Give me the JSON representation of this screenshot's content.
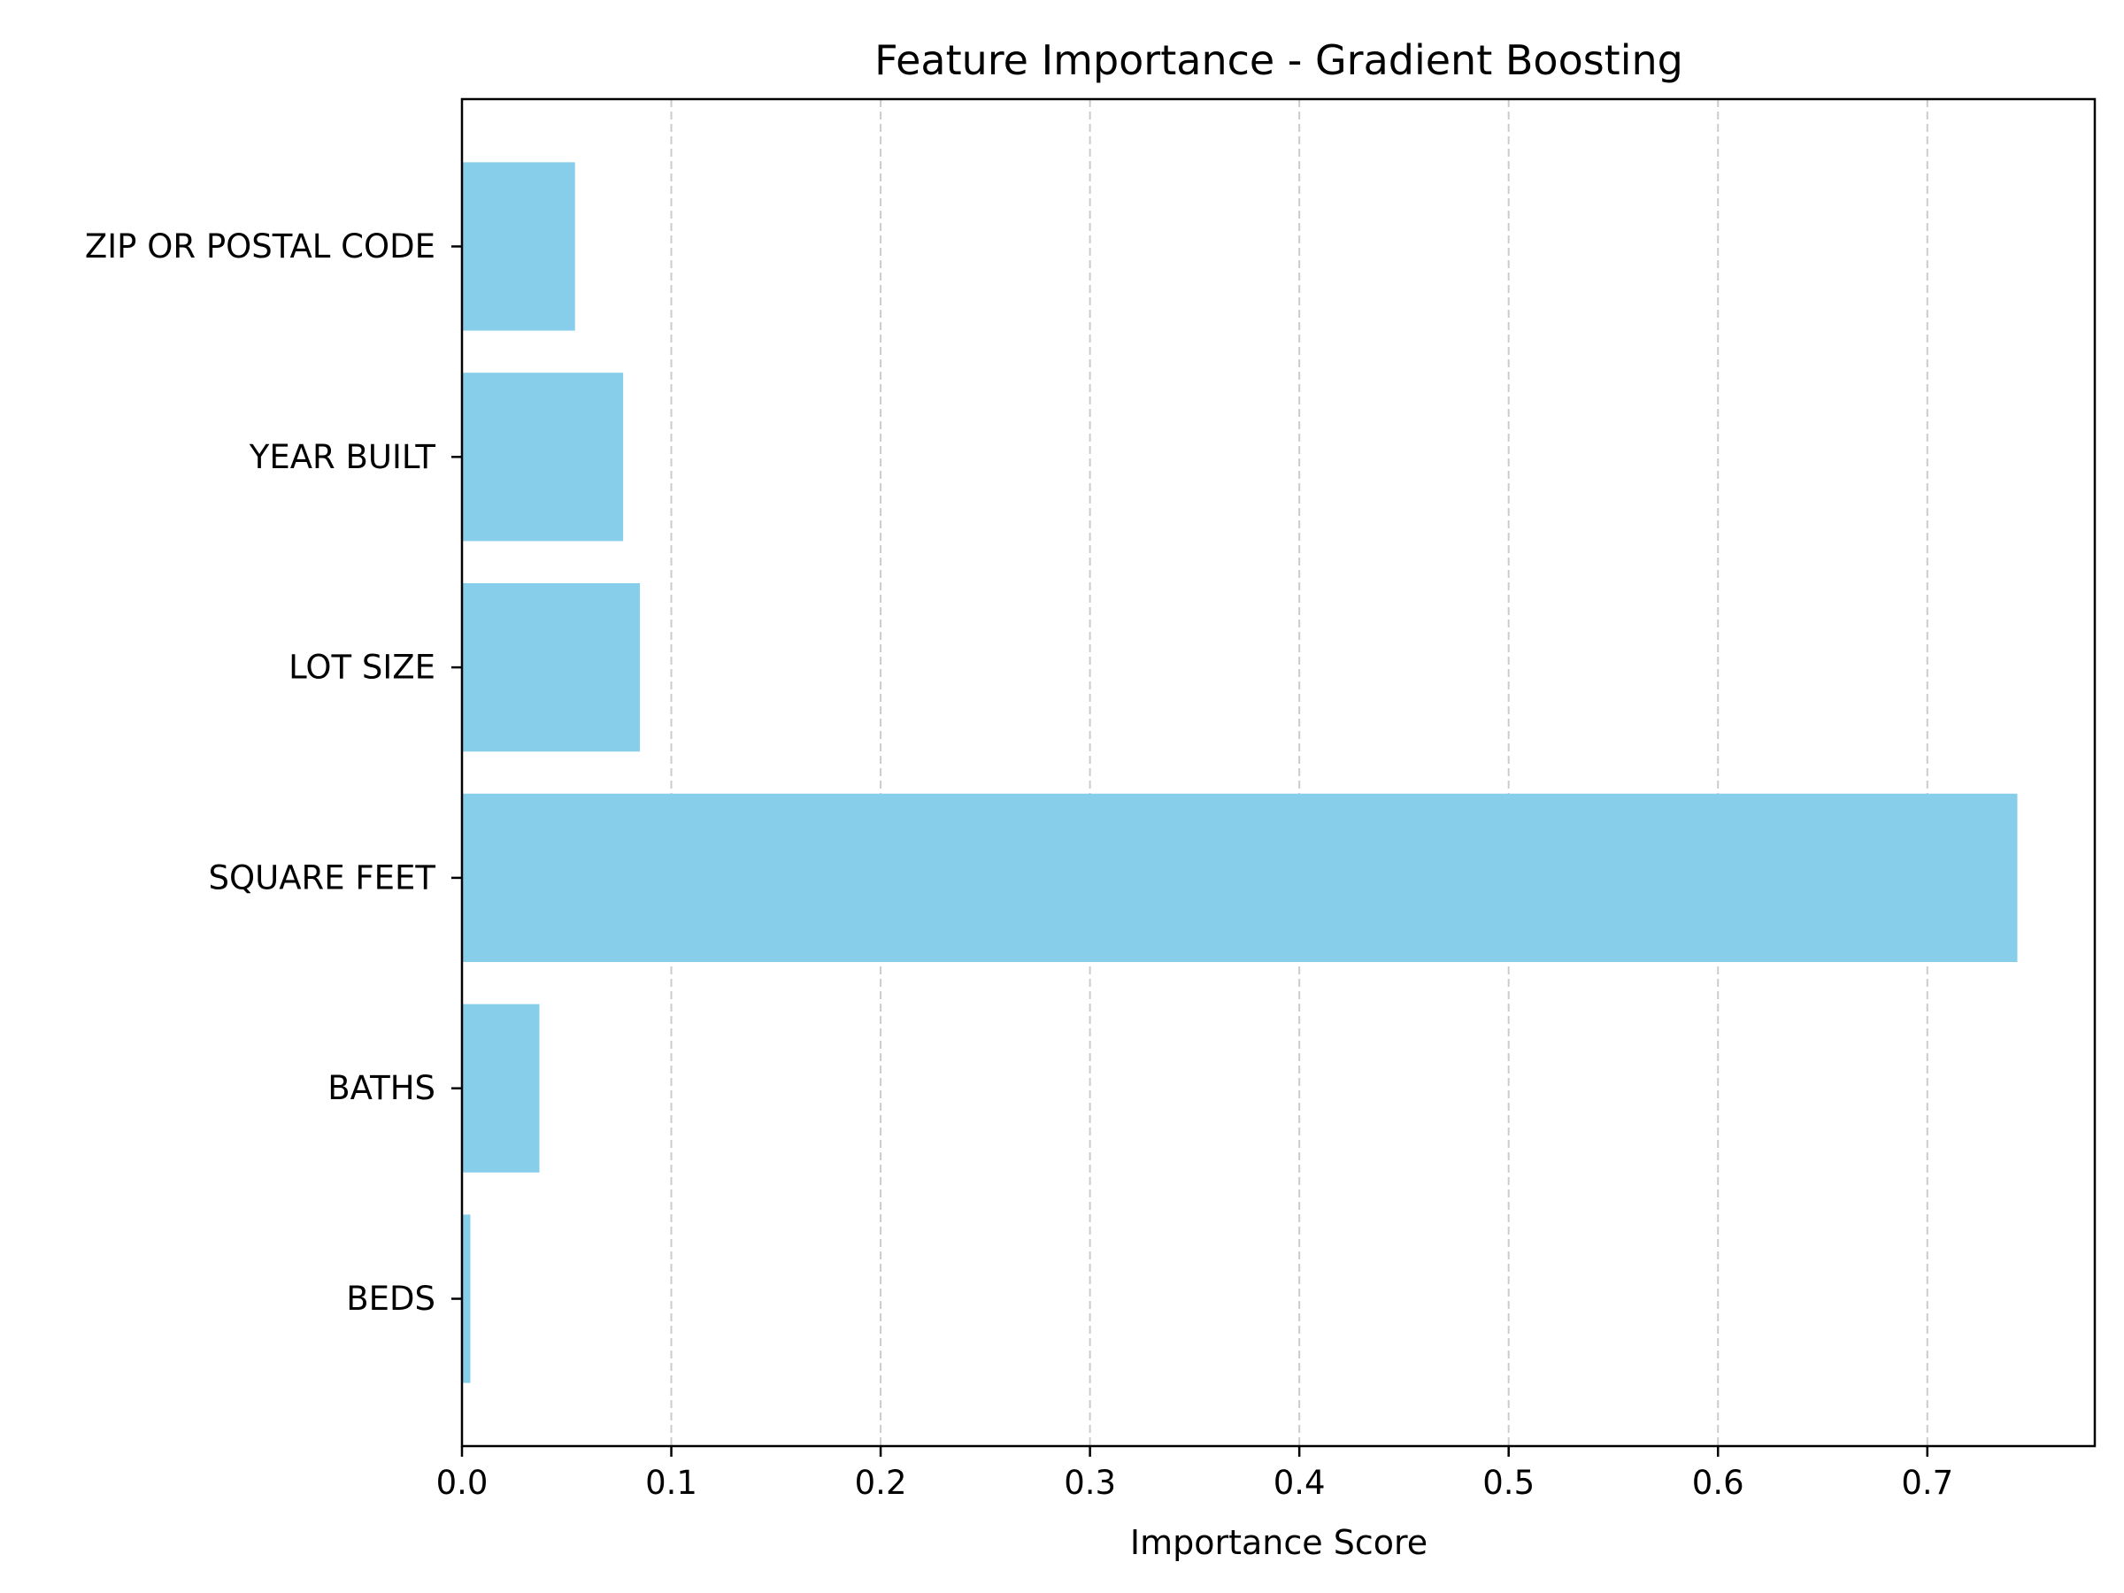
{
  "chart_data": {
    "type": "bar",
    "orientation": "horizontal",
    "title": "Feature Importance - Gradient Boosting",
    "xlabel": "Importance Score",
    "ylabel": "",
    "categories": [
      "BEDS",
      "BATHS",
      "SQUARE FEET",
      "LOT SIZE",
      "YEAR BUILT",
      "ZIP OR POSTAL CODE"
    ],
    "values": [
      0.004,
      0.037,
      0.743,
      0.085,
      0.077,
      0.054
    ],
    "xlim": [
      0.0,
      0.78
    ],
    "x_ticks": [
      0.0,
      0.1,
      0.2,
      0.3,
      0.4,
      0.5,
      0.6,
      0.7
    ],
    "x_tick_labels": [
      "0.0",
      "0.1",
      "0.2",
      "0.3",
      "0.4",
      "0.5",
      "0.6",
      "0.7"
    ],
    "grid": {
      "x": true,
      "y": false,
      "style": "dashed"
    },
    "colors": {
      "bar": "#87ceeb",
      "grid": "#cccccc",
      "axis": "#000000",
      "text": "#000000"
    }
  }
}
